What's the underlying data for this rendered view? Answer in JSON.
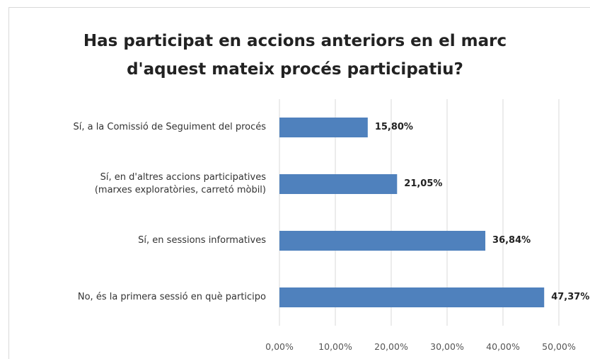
{
  "chart_data": {
    "type": "bar",
    "orientation": "horizontal",
    "title": "Has participat en accions anteriors en el marc\nd'aquest mateix procés participatiu?",
    "categories": [
      "Sí, a la Comissió de Seguiment del procés",
      "Sí, en d'altres accions participatives\n(marxes exploratòries, carretó mòbil)",
      "Sí, en sessions informatives",
      "No, és la primera sessió en què participo"
    ],
    "values": [
      15.8,
      21.05,
      36.84,
      47.37
    ],
    "value_labels": [
      "15,80%",
      "21,05%",
      "36,84%",
      "47,37%"
    ],
    "color": "#4f81bd",
    "xlim": [
      0,
      50
    ],
    "xticks": [
      {
        "value": 0,
        "label": "0,00%"
      },
      {
        "value": 10,
        "label": "10,00%"
      },
      {
        "value": 20,
        "label": "20,00%"
      },
      {
        "value": 30,
        "label": "30,00%"
      },
      {
        "value": 40,
        "label": "40,00%"
      },
      {
        "value": 50,
        "label": "50,00%"
      }
    ],
    "grid": true
  }
}
